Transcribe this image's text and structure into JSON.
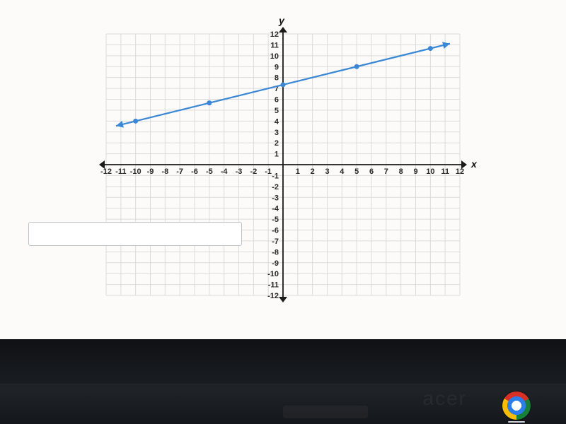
{
  "chart": {
    "type": "line",
    "xlabel": "x",
    "ylabel": "y",
    "label_fontsize": 14,
    "label_fontstyle": "italic",
    "tick_fontsize": 11,
    "xlim": [
      -12,
      12
    ],
    "ylim": [
      -12,
      12
    ],
    "xtick_step": 1,
    "ytick_step": 1,
    "grid_color": "#dadbda",
    "axis_color": "#1a1a1a",
    "background_color": "#fcfbf9",
    "line_color": "#3a87d6",
    "line_width": 2.2,
    "marker_color": "#3a87d6",
    "marker_radius": 3.5,
    "arrow_on_axes": true,
    "arrow_on_line_ends": true,
    "points": [
      {
        "x": -10,
        "y": 4
      },
      {
        "x": -5,
        "y": 5.666
      },
      {
        "x": 0,
        "y": 7.333
      },
      {
        "x": 5,
        "y": 9
      },
      {
        "x": 10,
        "y": 10.666
      }
    ],
    "line_equation_hint": "y = (1/3)x + 7.33 (approx from plotted points)"
  },
  "taskbar": {
    "chrome_icon": "chrome-icon",
    "brand_text": "acer"
  },
  "answer_input": {
    "placeholder": ""
  }
}
